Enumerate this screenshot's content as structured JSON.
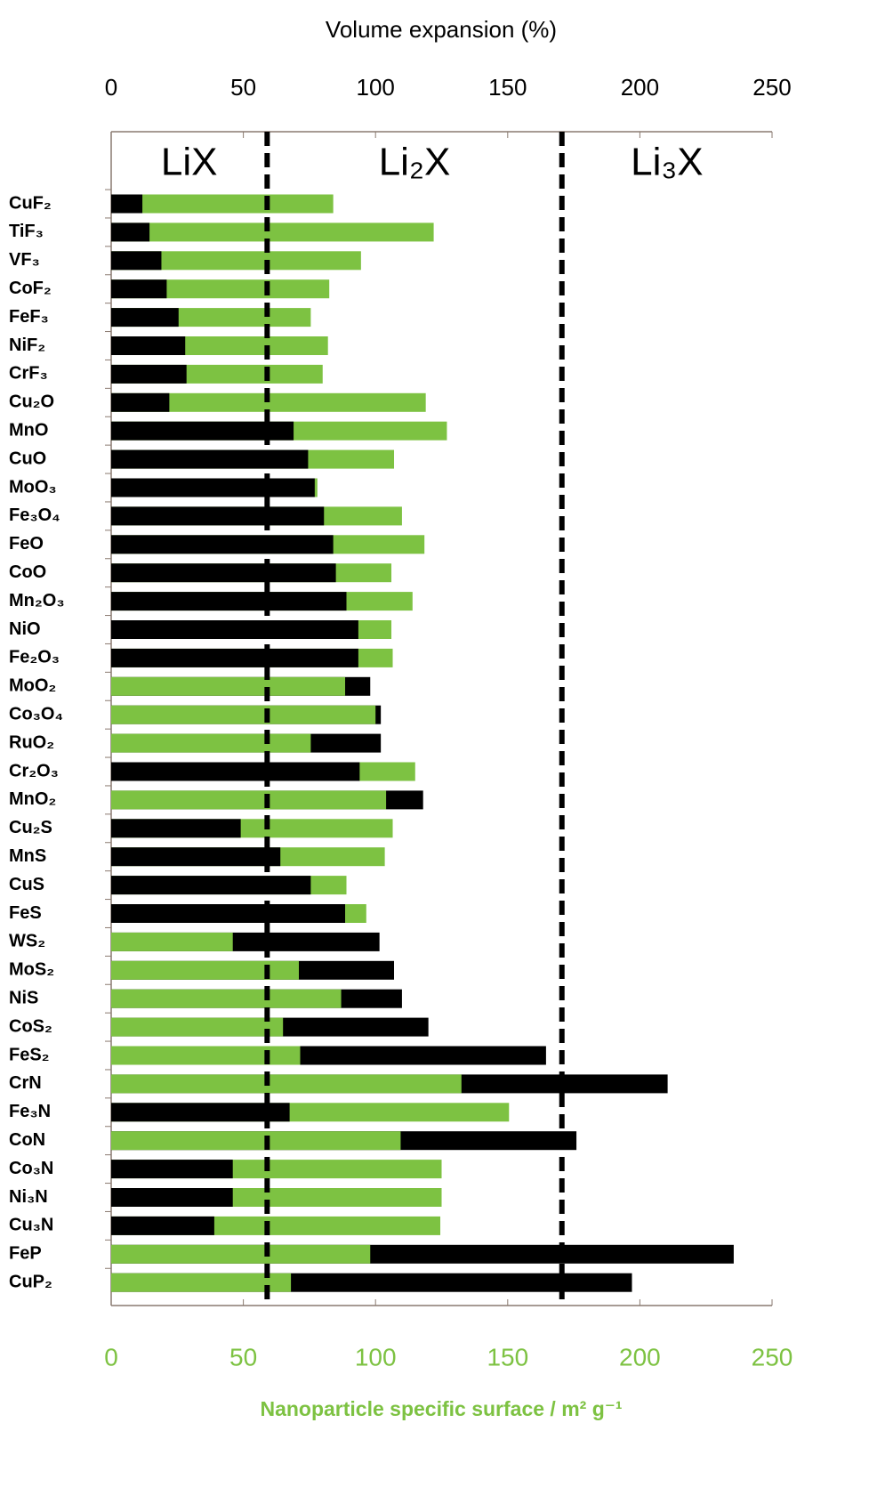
{
  "chart_data": {
    "type": "bar",
    "orientation": "horizontal",
    "x2_label": "Volume expansion (%)",
    "x_label": "Nanoparticle specific surface / m² g⁻¹",
    "categories": [
      "CuF₂",
      "TiF₃",
      "VF₃",
      "CoF₂",
      "FeF₃",
      "NiF₂",
      "CrF₃",
      "Cu₂O",
      "MnO",
      "CuO",
      "MoO₃",
      "Fe₃O₄",
      "FeO",
      "CoO",
      "Mn₂O₃",
      "NiO",
      "Fe₂O₃",
      "MoO₂",
      "Co₃O₄",
      "RuO₂",
      "Cr₂O₃",
      "MnO₂",
      "Cu₂S",
      "MnS",
      "CuS",
      "FeS",
      "WS₂",
      "MoS₂",
      "NiS",
      "CoS₂",
      "FeS₂",
      "CrN",
      "Fe₃N",
      "CoN",
      "Co₃N",
      "Ni₃N",
      "Cu₃N",
      "FeP",
      "CuP₂"
    ],
    "series": [
      {
        "color": "#000000",
        "axis": "x2",
        "values": [
          11.8,
          14.5,
          19,
          21,
          25.5,
          28,
          28.5,
          22,
          69,
          74.5,
          77,
          80.5,
          84,
          85,
          89,
          93.5,
          93.5,
          98,
          102,
          102,
          94,
          118,
          49,
          64,
          75.5,
          88.5,
          101.5,
          107,
          110,
          120,
          164.5,
          210.5,
          67.5,
          176,
          46,
          46,
          39,
          235.5,
          197
        ]
      },
      {
        "color": "#7dc242",
        "values": [
          84,
          122,
          94.5,
          82.5,
          75.5,
          82,
          80,
          119,
          127,
          107,
          78,
          110,
          118.5,
          106,
          114,
          106,
          106.5,
          88.5,
          100,
          75.5,
          115,
          104,
          106.5,
          103.5,
          89,
          96.5,
          46,
          71,
          87,
          65,
          71.5,
          132.5,
          150.5,
          109.5,
          125,
          125,
          124.5,
          98,
          68
        ]
      }
    ],
    "xlim": [
      0,
      250
    ],
    "xticks": [
      0,
      50,
      100,
      150,
      200,
      250
    ],
    "x2lim": [
      0,
      250
    ],
    "x2ticks": [
      0,
      50,
      100,
      150,
      200,
      250
    ],
    "dividers": [
      59,
      170.5
    ],
    "regions": [
      "LiX",
      "Li₂X",
      "Li₃X"
    ]
  }
}
